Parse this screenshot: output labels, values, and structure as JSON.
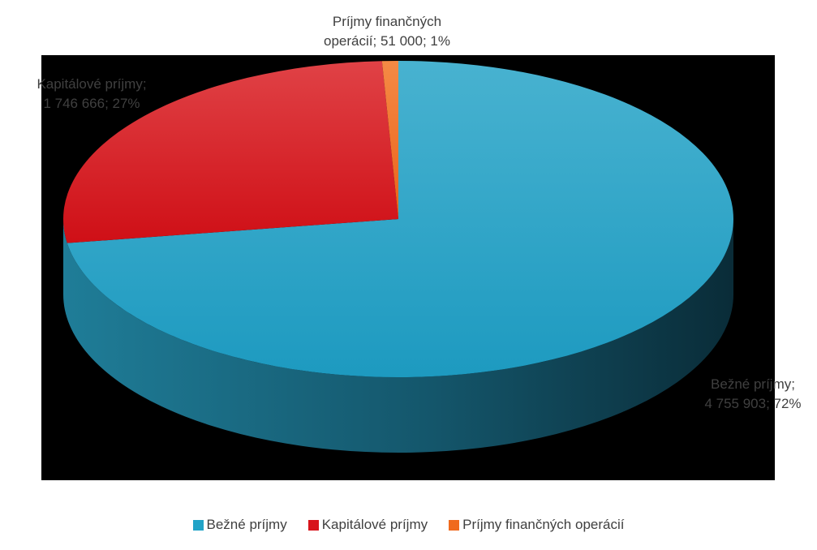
{
  "chart_data": {
    "type": "pie",
    "title": "",
    "three_d": true,
    "legend_position": "bottom",
    "start_angle_deg": 0,
    "categories": [
      "Bežné príjmy",
      "Kapitálové príjmy",
      "Príjmy finančných operácií"
    ],
    "values": [
      4755903,
      1746666,
      51000
    ],
    "percents": [
      72,
      27,
      1
    ],
    "colors": [
      "#21A3C7",
      "#D8141B",
      "#F06A1E"
    ],
    "labels": [
      {
        "line1": "Bežné príjmy;",
        "line2": "4 755 903; 72%"
      },
      {
        "line1": "Kapitálové príjmy;",
        "line2": "1 746 666; 27%"
      },
      {
        "line1": "Príjmy finančných",
        "line2": "operácií; 51 000; 1%"
      }
    ]
  }
}
